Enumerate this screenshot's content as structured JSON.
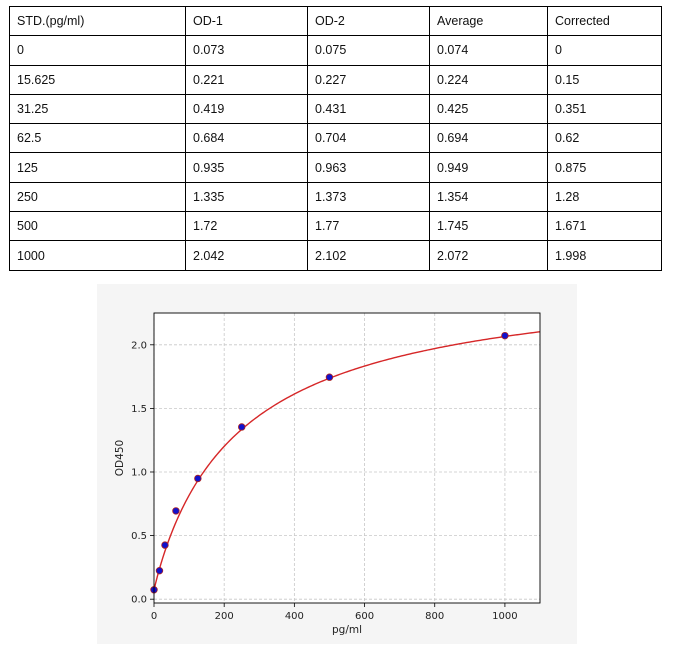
{
  "table": {
    "headers": [
      "STD.(pg/ml)",
      "OD-1",
      "OD-2",
      "Average",
      "Corrected"
    ],
    "rows": [
      [
        "0",
        "0.073",
        "0.075",
        "0.074",
        "0"
      ],
      [
        "15.625",
        "0.221",
        "0.227",
        "0.224",
        "0.15"
      ],
      [
        "31.25",
        "0.419",
        "0.431",
        "0.425",
        "0.351"
      ],
      [
        "62.5",
        "0.684",
        "0.704",
        "0.694",
        "0.62"
      ],
      [
        "125",
        "0.935",
        "0.963",
        "0.949",
        "0.875"
      ],
      [
        "250",
        "1.335",
        "1.373",
        "1.354",
        "1.28"
      ],
      [
        "500",
        "1.72",
        "1.77",
        "1.745",
        "1.671"
      ],
      [
        "1000",
        "2.042",
        "2.102",
        "2.072",
        "1.998"
      ]
    ]
  },
  "chart_data": {
    "type": "scatter",
    "title": "",
    "xlabel": "pg/ml",
    "ylabel": "OD450",
    "xlim": [
      0,
      1100
    ],
    "ylim": [
      -0.03,
      2.25
    ],
    "x_ticks": [
      "0",
      "200",
      "400",
      "600",
      "800",
      "1000"
    ],
    "y_ticks": [
      "0.0",
      "0.5",
      "1.0",
      "1.5",
      "2.0"
    ],
    "grid": true,
    "points": {
      "x": [
        0,
        15.625,
        31.25,
        62.5,
        125,
        250,
        500,
        1000
      ],
      "y": [
        0.074,
        0.224,
        0.425,
        0.694,
        0.949,
        1.354,
        1.745,
        2.072
      ]
    },
    "fit_curve": {
      "type": "4PL",
      "a": 0.07,
      "b": 0.95,
      "c": 250,
      "d": 2.6,
      "color": "#d62728"
    },
    "point_color": "#1111cc",
    "point_edge_color": "#aa2222"
  }
}
